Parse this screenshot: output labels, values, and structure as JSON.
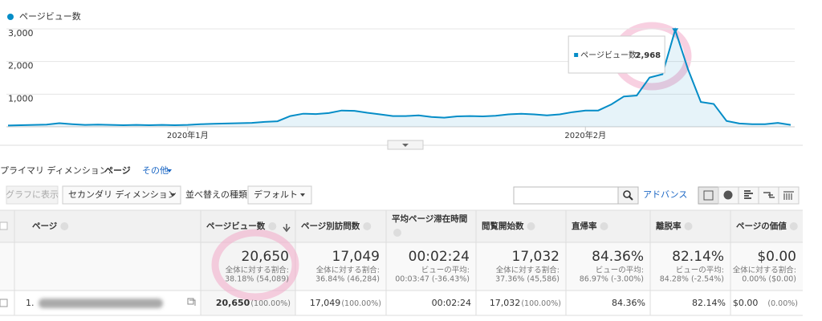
{
  "chart_data": {
    "type": "line",
    "categories": [
      null,
      null,
      null,
      null,
      null,
      null,
      null,
      null,
      null,
      null,
      null,
      null,
      null,
      null,
      "2020年1月",
      null,
      null,
      null,
      null,
      null,
      null,
      null,
      null,
      null,
      null,
      null,
      null,
      null,
      null,
      null,
      null,
      null,
      null,
      null,
      null,
      null,
      null,
      null,
      null,
      null,
      null,
      null,
      null,
      null,
      null,
      "2020年2月",
      null,
      null,
      null,
      null,
      null,
      null,
      null,
      null,
      null,
      null,
      null,
      null,
      null,
      null,
      null,
      null
    ],
    "series": [
      {
        "name": "ページビュー数",
        "color": "#058dc7",
        "values": [
          40,
          50,
          60,
          70,
          110,
          80,
          60,
          70,
          60,
          50,
          60,
          50,
          60,
          50,
          60,
          80,
          90,
          100,
          110,
          120,
          150,
          170,
          330,
          400,
          390,
          420,
          500,
          490,
          430,
          380,
          330,
          330,
          350,
          300,
          280,
          320,
          330,
          320,
          340,
          380,
          400,
          380,
          350,
          380,
          450,
          500,
          500,
          680,
          930,
          960,
          1510,
          1610,
          2968,
          1760,
          760,
          700,
          180,
          100,
          80,
          80,
          120,
          60
        ],
        "value_labels": [
          null,
          null,
          null,
          null,
          null,
          null,
          null,
          null,
          null,
          null,
          null,
          null,
          null,
          null,
          null,
          null,
          null,
          null,
          null,
          null,
          null,
          null,
          null,
          null,
          null,
          null,
          null,
          null,
          null,
          null,
          null,
          null,
          null,
          null,
          null,
          null,
          null,
          null,
          null,
          null,
          null,
          null,
          null,
          null,
          null,
          null,
          null,
          null,
          null,
          null,
          null,
          null,
          "2,968",
          null,
          null,
          null,
          null,
          null,
          null,
          null,
          null,
          null
        ]
      }
    ],
    "tooltip_label": "ページビュー数:",
    "ylim": [
      0,
      3000
    ],
    "yticks": [
      {
        "value": 1000,
        "label": "1,000"
      },
      {
        "value": 2000,
        "label": "2,000"
      },
      {
        "value": 3000,
        "label": "3,000"
      }
    ],
    "grid": true
  },
  "primary_dimension": {
    "label": "プライマリ ディメンション:",
    "value": "ページ",
    "other": "その他"
  },
  "toolbar": {
    "chart_button": "グラフに表示",
    "secondary_dimension": "セカンダリ ディメンション",
    "sort_label": "並べ替えの種類:",
    "sort_value": "デフォルト",
    "advanced": "アドバンス"
  },
  "table": {
    "headers": [
      "ページ",
      "ページビュー数",
      "ページ別訪問数",
      "平均ページ滞在時間",
      "閲覧開始数",
      "直帰率",
      "離脱率",
      "ページの価値"
    ],
    "totals": [
      [
        "20,650",
        "全体に対する割合:",
        "38.18% (54,089)"
      ],
      [
        "17,049",
        "全体に対する割合:",
        "36.84% (46,284)"
      ],
      [
        "00:02:24",
        "ビューの平均:",
        "00:03:47 (-36.43%)"
      ],
      [
        "17,032",
        "全体に対する割合:",
        "37.36% (45,586)"
      ],
      [
        "84.36%",
        "ビューの平均:",
        "86.97% (-3.00%)"
      ],
      [
        "82.14%",
        "ビューの平均:",
        "84.28% (-2.54%)"
      ],
      [
        "$0.00",
        "全体に対する割合:",
        "0.00% ($0.00)"
      ]
    ],
    "rows": [
      {
        "index": "1.",
        "cells": [
          [
            "20,650",
            "(100.00%)"
          ],
          [
            "17,049",
            "(100.00%)"
          ],
          [
            "00:02:24"
          ],
          [
            "17,032",
            "(100.00%)"
          ],
          [
            "84.36%"
          ],
          [
            "82.14%"
          ],
          [
            "$0.00",
            "(0.00%)"
          ]
        ]
      }
    ]
  }
}
